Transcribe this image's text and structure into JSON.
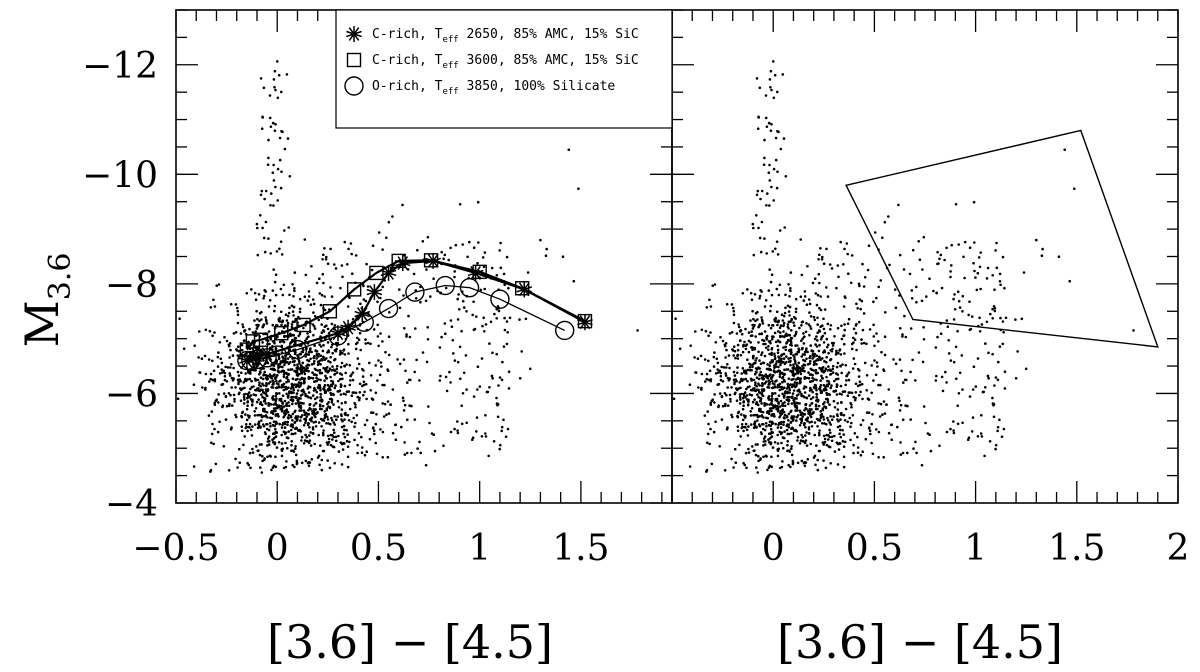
{
  "chart_data": [
    {
      "panel": "left",
      "type": "scatter",
      "ylabel": "M",
      "ylabel_sub": "3.6",
      "xlabel": "[3.6] − [4.5]",
      "xlim": [
        -0.5,
        1.95
      ],
      "ylim": [
        -4,
        -13
      ],
      "y_axis_inverted": true,
      "xticks": [
        "−0.5",
        "0",
        "0.5",
        "1",
        "1.5"
      ],
      "xtick_values": [
        -0.5,
        0,
        0.5,
        1,
        1.5
      ],
      "yticks": [
        "−4",
        "−6",
        "−8",
        "−10",
        "−12"
      ],
      "ytick_values": [
        -4,
        -6,
        -8,
        -10,
        -12
      ],
      "legend_position": "top-right",
      "legend": [
        {
          "marker": "asterisk",
          "prefix": "C-rich, T",
          "sub": "eff",
          "suffix": " 2650, 85% AMC, 15% SiC"
        },
        {
          "marker": "square",
          "prefix": "C-rich, T",
          "sub": "eff",
          "suffix": " 3600, 85% AMC, 15% SiC"
        },
        {
          "marker": "circle",
          "prefix": "O-rich, T",
          "sub": "eff",
          "suffix": " 3850, 100% Silicate"
        }
      ],
      "series": [
        {
          "marker": "asterisk",
          "points": [
            [
              -0.15,
              -6.6
            ],
            [
              -0.12,
              -6.65
            ],
            [
              -0.1,
              -6.7
            ],
            [
              -0.05,
              -6.72
            ],
            [
              0.3,
              -7.1
            ],
            [
              0.35,
              -7.2
            ],
            [
              0.42,
              -7.45
            ],
            [
              0.48,
              -7.85
            ],
            [
              0.55,
              -8.2
            ],
            [
              0.62,
              -8.38
            ],
            [
              0.77,
              -8.42
            ],
            [
              0.98,
              -8.2
            ],
            [
              1.22,
              -7.9
            ],
            [
              1.52,
              -7.3
            ]
          ]
        },
        {
          "marker": "square",
          "points": [
            [
              -0.15,
              -6.8
            ],
            [
              -0.12,
              -6.95
            ],
            [
              -0.08,
              -6.98
            ],
            [
              0.02,
              -7.1
            ],
            [
              0.13,
              -7.25
            ],
            [
              0.26,
              -7.5
            ],
            [
              0.38,
              -7.9
            ],
            [
              0.49,
              -8.2
            ],
            [
              0.6,
              -8.42
            ],
            [
              0.76,
              -8.43
            ],
            [
              1.0,
              -8.22
            ],
            [
              1.21,
              -7.92
            ],
            [
              1.52,
              -7.32
            ]
          ]
        },
        {
          "marker": "circle",
          "points": [
            [
              -0.15,
              -6.6
            ],
            [
              -0.13,
              -6.6
            ],
            [
              -0.1,
              -6.62
            ],
            [
              -0.05,
              -6.65
            ],
            [
              0.0,
              -6.7
            ],
            [
              0.1,
              -6.8
            ],
            [
              0.3,
              -7.05
            ],
            [
              0.43,
              -7.3
            ],
            [
              0.55,
              -7.55
            ],
            [
              0.68,
              -7.85
            ],
            [
              0.83,
              -7.97
            ],
            [
              0.95,
              -7.93
            ],
            [
              1.1,
              -7.72
            ],
            [
              1.42,
              -7.15
            ]
          ]
        }
      ],
      "scatter_points": "~1800 dots, concentrated x in [-0.3, 0.4], M from -4.6 to -9; sparse extension to x=1.5, M to -12"
    },
    {
      "panel": "right",
      "type": "scatter",
      "xlabel": "[3.6] − [4.5]",
      "xlim": [
        -0.5,
        2.0
      ],
      "ylim": [
        -4,
        -13
      ],
      "y_axis_inverted": true,
      "xticks": [
        "0",
        "0.5",
        "1",
        "1.5",
        "2"
      ],
      "xtick_values": [
        0,
        0.5,
        1,
        1.5,
        2
      ],
      "selection_polygon": [
        [
          0.36,
          -9.8
        ],
        [
          1.52,
          -10.8
        ],
        [
          1.9,
          -6.85
        ],
        [
          0.69,
          -7.35
        ]
      ],
      "scatter_points": "same sample as left panel"
    }
  ],
  "labels": {
    "ylabel_main": "M",
    "ylabel_sub": "3.6",
    "xlabel_left": "[3.6]  −  [4.5]",
    "xlabel_right": "[3.6]  −  [4.5]"
  }
}
